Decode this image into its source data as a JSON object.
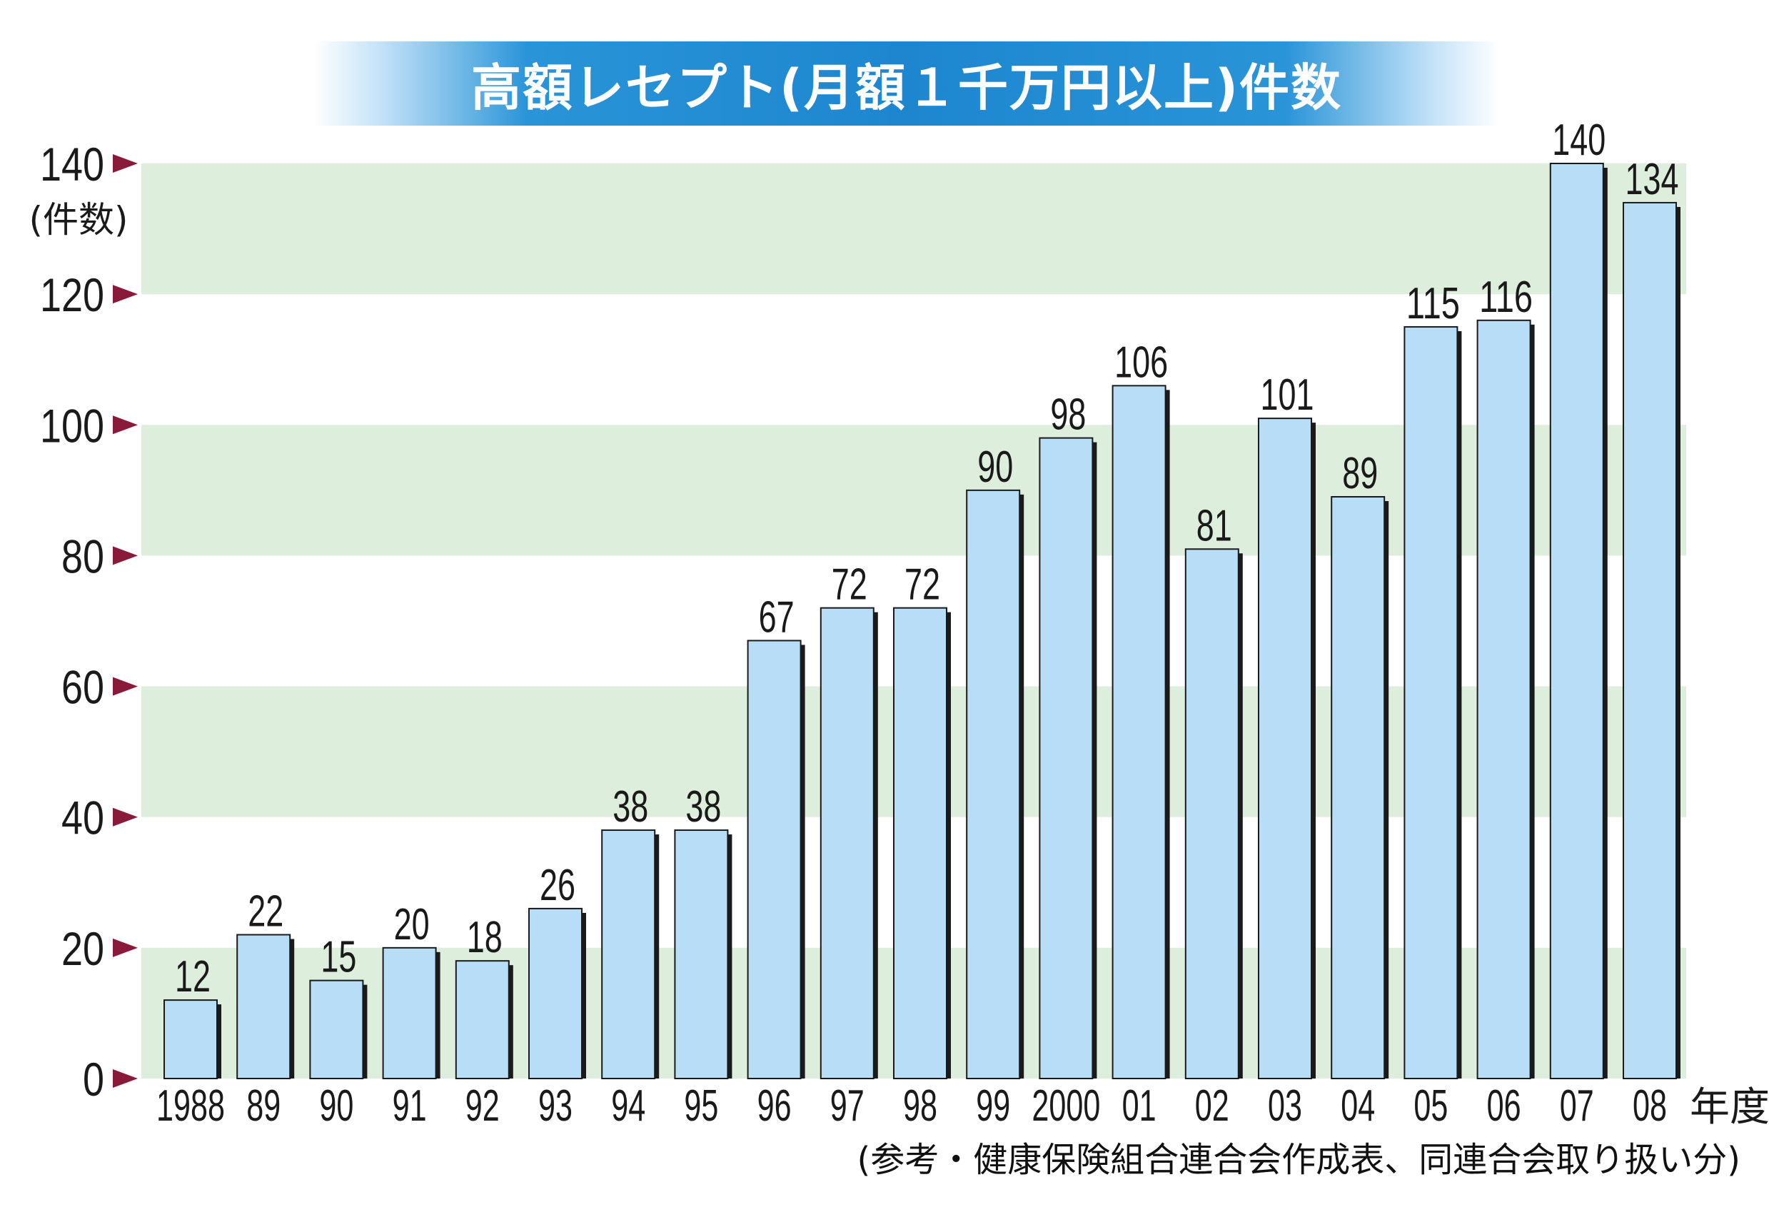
{
  "chart_data": {
    "type": "bar",
    "title": "高額レセプト(月額１千万円以上)件数",
    "ylabel": "(件数)",
    "xunit": "年度",
    "categories": [
      "1988",
      "89",
      "90",
      "91",
      "92",
      "93",
      "94",
      "95",
      "96",
      "97",
      "98",
      "99",
      "2000",
      "01",
      "02",
      "03",
      "04",
      "05",
      "06",
      "07",
      "08"
    ],
    "values": [
      12,
      22,
      15,
      20,
      18,
      26,
      38,
      38,
      67,
      72,
      72,
      90,
      98,
      106,
      81,
      101,
      89,
      115,
      116,
      140,
      134
    ],
    "yticks": [
      0,
      20,
      40,
      60,
      80,
      100,
      120,
      140
    ],
    "ylim": [
      0,
      140
    ],
    "grid": "alternating bands",
    "colors": {
      "bar": "#b8def7",
      "bar_shadow": "#1a1a1a",
      "band": "#deeedc",
      "tick_arrow": "#8a1a3a",
      "title_bg": "#1d86cf"
    }
  },
  "footer": {
    "source": "(参考・健康保険組合連合会作成表、同連合会取り扱い分)"
  }
}
